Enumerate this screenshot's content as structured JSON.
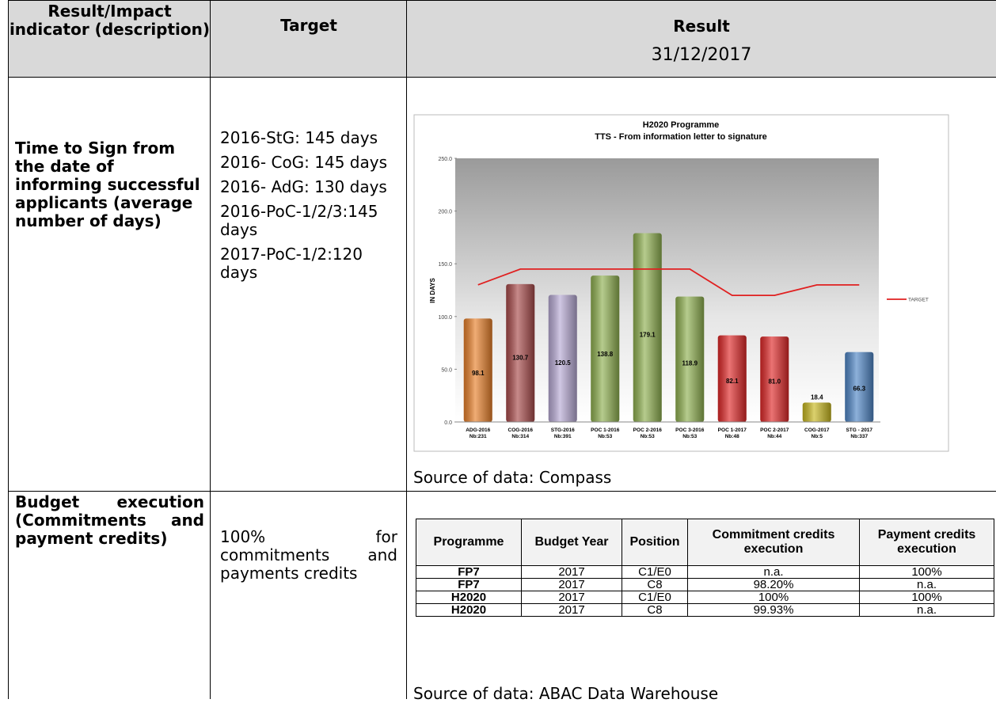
{
  "header": {
    "col1": "Result/Impact indicator (description)",
    "col2": "Target",
    "col3_title": "Result",
    "col3_date": "31/12/2017"
  },
  "rows": [
    {
      "indicator": "Time to Sign from the date of informing successful applicants (average number of days)",
      "targets": [
        "2016-StG: 145 days",
        "2016- CoG: 145 days",
        "2016- AdG: 130 days",
        "2016-PoC-1/2/3:145 days",
        "2017-PoC-1/2:120 days"
      ],
      "source": "Source of data: Compass"
    },
    {
      "indicator": "Budget execution (Commitments and payment credits)",
      "targets": [
        "100% for commitments and payments credits"
      ],
      "source": "Source of data: ABAC Data Warehouse"
    }
  ],
  "chart_data": {
    "type": "bar",
    "title": "H2020 Programme",
    "subtitle": "TTS - From information letter to signature",
    "y_label": "IN DAYS",
    "categories": [
      "ADG-2016",
      "COG-2016",
      "STG-2016",
      "POC 1-2016",
      "POC 2-2016",
      "POC 3-2016",
      "POC 1-2017",
      "POC 2-2017",
      "COG-2017",
      "STG - 2017"
    ],
    "counts": [
      "Nb:231",
      "Nb:314",
      "Nb:391",
      "Nb:53",
      "Nb:53",
      "Nb:53",
      "Nb:48",
      "Nb:44",
      "Nb:5",
      "Nb:337"
    ],
    "values": [
      98.1,
      130.7,
      120.5,
      138.8,
      179.1,
      118.9,
      82.1,
      81.0,
      18.4,
      66.3
    ],
    "value_labels": [
      "98.1",
      "130.7",
      "120.5",
      "138.8",
      "179.1",
      "118.9",
      "82.1",
      "81.0",
      "18.4",
      "66.3"
    ],
    "colors": [
      "#e8802a",
      "#a84a4a",
      "#b7a9d4",
      "#8fb050",
      "#8fb050",
      "#8fb050",
      "#e02828",
      "#e02828",
      "#c8b820",
      "#4f86c6"
    ],
    "series": [
      {
        "name": "TARGET",
        "color": "#e02020",
        "values": [
          130,
          145,
          145,
          145,
          145,
          145,
          120,
          120,
          130,
          130
        ]
      }
    ],
    "ylim": [
      0,
      250
    ],
    "yticks": [
      {
        "value": 0,
        "label": "0.0"
      },
      {
        "value": 50,
        "label": "50.0"
      },
      {
        "value": 100,
        "label": "100.0"
      },
      {
        "value": 150,
        "label": "150.0"
      },
      {
        "value": 200,
        "label": "200.0"
      },
      {
        "value": 250,
        "label": "250.0"
      }
    ],
    "legend": "right"
  },
  "budget_table": {
    "columns": [
      "Programme",
      "Budget Year",
      "Position",
      "Commitment credits execution",
      "Payment credits execution"
    ],
    "rows": [
      [
        "FP7",
        "2017",
        "C1/E0",
        "n.a.",
        "100%"
      ],
      [
        "FP7",
        "2017",
        "C8",
        "98.20%",
        "n.a."
      ],
      [
        "H2020",
        "2017",
        "C1/E0",
        "100%",
        "100%"
      ],
      [
        "H2020",
        "2017",
        "C8",
        "99.93%",
        "n.a."
      ]
    ]
  }
}
